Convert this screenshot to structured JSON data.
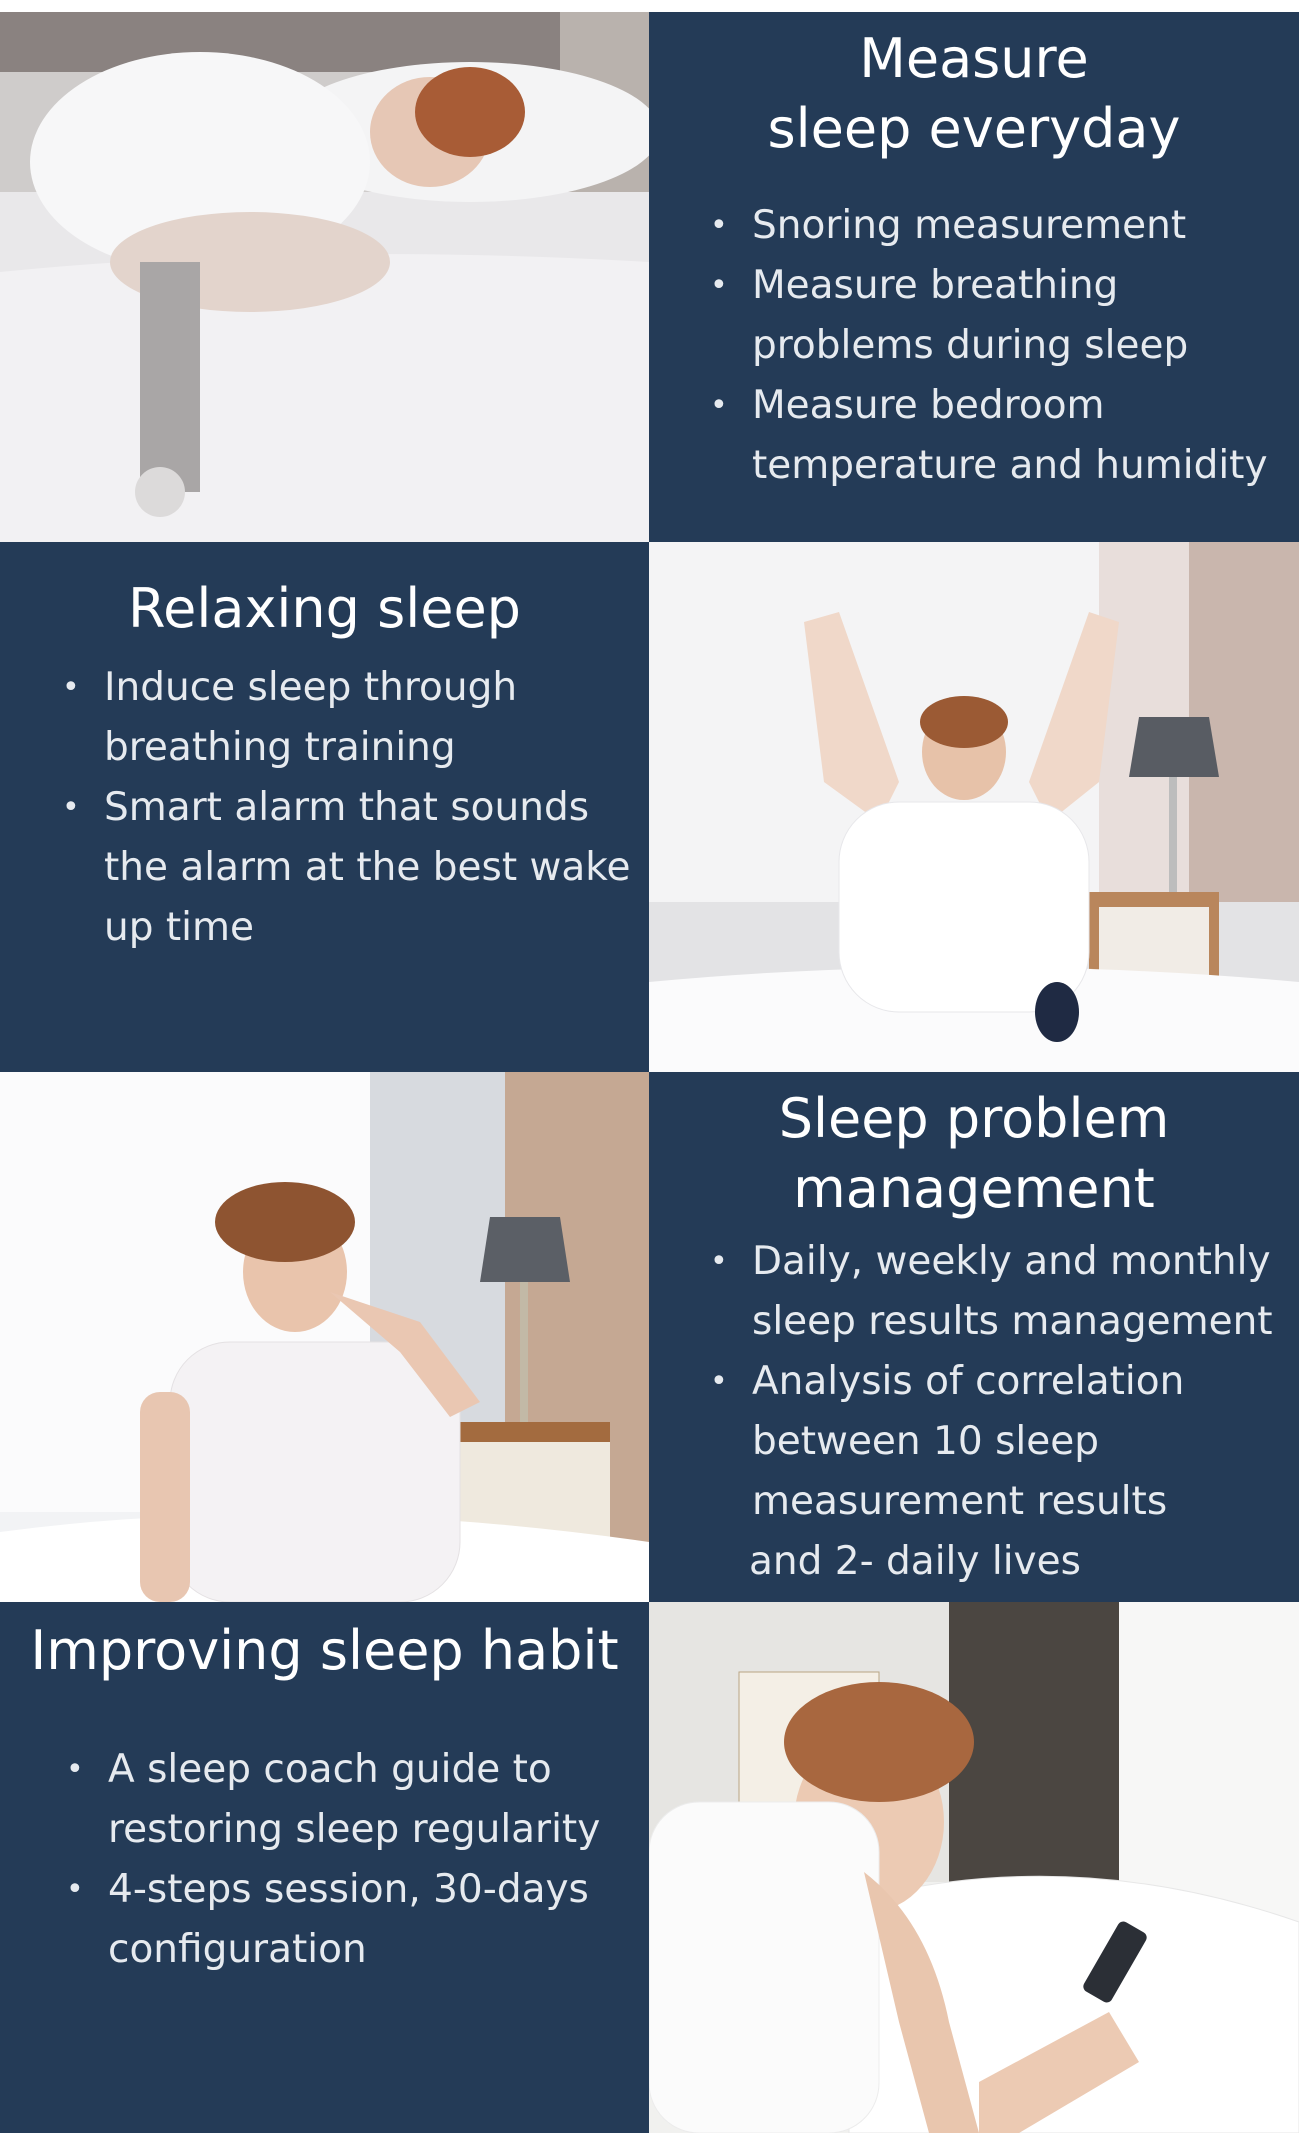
{
  "sections": [
    {
      "title": [
        "Measure",
        "sleep everyday"
      ],
      "bullets": [
        [
          "Snoring measurement"
        ],
        [
          "Measure breathing",
          "problems during sleep"
        ],
        [
          "Measure bedroom",
          "temperature and humidity"
        ]
      ]
    },
    {
      "title": [
        "Relaxing sleep"
      ],
      "bullets": [
        [
          "Induce sleep through",
          "breathing training"
        ],
        [
          "Smart alarm that sounds",
          "the alarm at the best wake",
          "up time"
        ]
      ]
    },
    {
      "title": [
        "Sleep problem",
        "management"
      ],
      "bullets": [
        [
          "Daily, weekly and monthly",
          "sleep results management"
        ],
        [
          "Analysis of correlation",
          "between 10 sleep",
          "measurement results"
        ]
      ],
      "trailing_line": "and 2- daily lives"
    },
    {
      "title": [
        "Improving sleep habit"
      ],
      "bullets": [
        [
          "A sleep coach guide to",
          "restoring sleep regularity"
        ],
        [
          "4-steps session, 30-days",
          "configuration"
        ]
      ]
    }
  ],
  "bullet_symbol": "•",
  "colors": {
    "panel_bg": "#243b57",
    "panel_text": "#e6eaef",
    "title_text": "#ffffff"
  },
  "photos": [
    "man-sleeping-photo",
    "man-stretching-photo",
    "man-neck-pain-photo",
    "man-using-phone-photo"
  ]
}
